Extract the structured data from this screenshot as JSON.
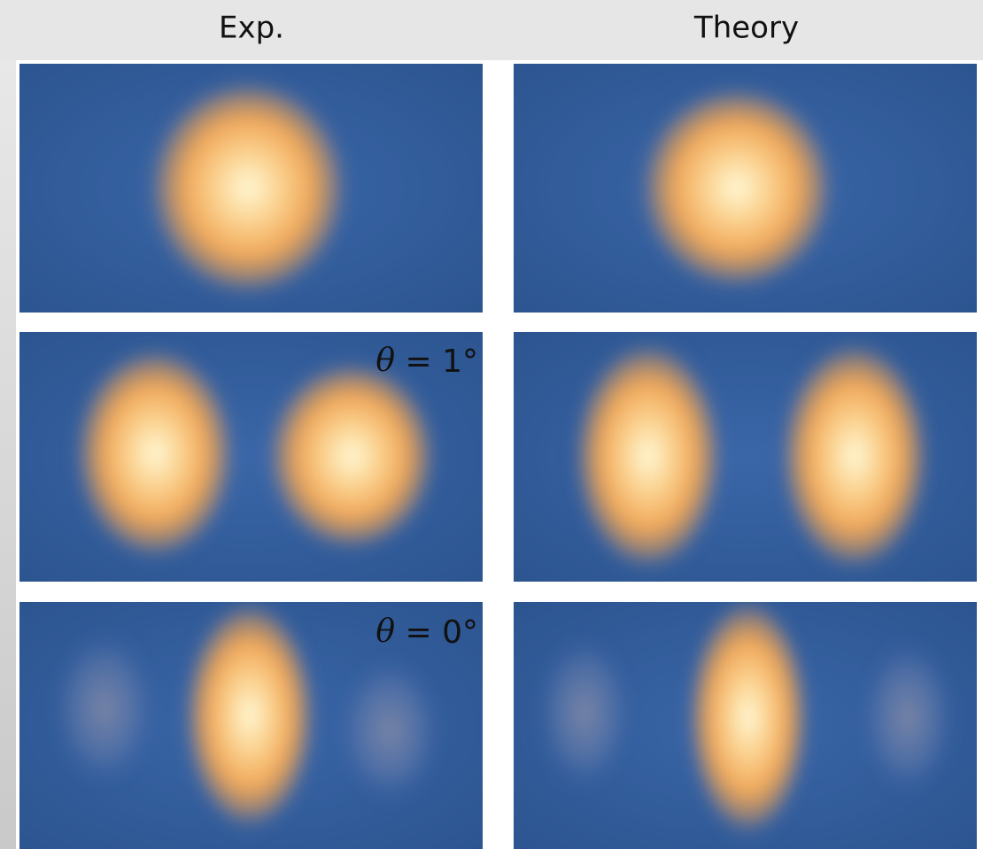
{
  "header": {
    "columns": [
      "Exp.",
      "Theory"
    ]
  },
  "annotations": [
    {
      "symbol": "θ",
      "text": "= 1°"
    },
    {
      "symbol": "θ",
      "text": "= 0°"
    }
  ]
}
